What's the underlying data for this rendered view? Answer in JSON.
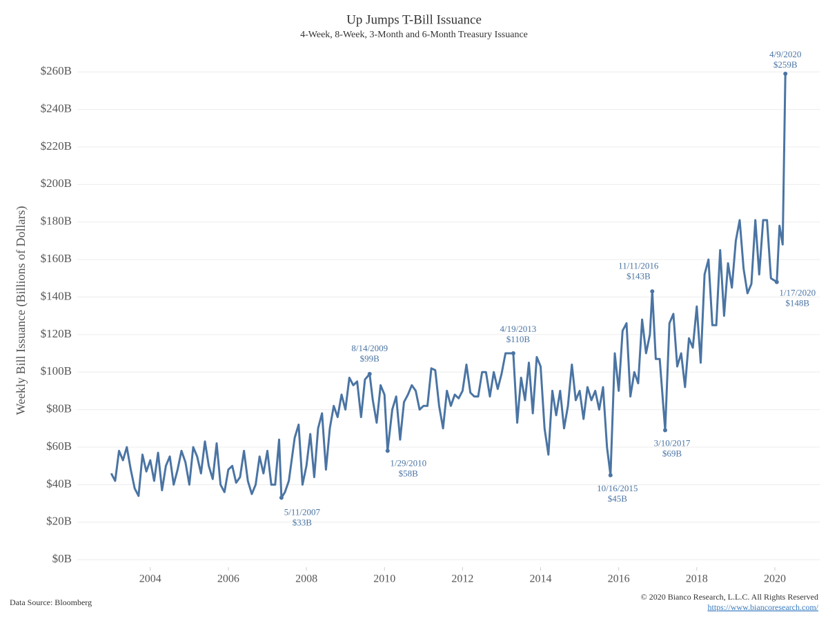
{
  "chart_data": {
    "type": "line",
    "title": "Up Jumps T-Bill Issuance",
    "subtitle": "4-Week, 8-Week, 3-Month and 6-Month Treasury Issuance",
    "y_label": "Weekly Bill Issuance (Billions of Dollars)",
    "source": "Data Source: Bloomberg",
    "copyright": "© 2020 Bianco Research, L.L.C. All Rights Reserved",
    "url": "https://www.biancoresearch.com/",
    "xlim": [
      2002.13,
      2021.15
    ],
    "xticks": [
      2004,
      2006,
      2008,
      2010,
      2012,
      2014,
      2016,
      2018,
      2020
    ],
    "ylim": [
      -4,
      270
    ],
    "yticks": [
      {
        "value": 0,
        "label": "$0B"
      },
      {
        "value": 20,
        "label": "$20B"
      },
      {
        "value": 40,
        "label": "$40B"
      },
      {
        "value": 60,
        "label": "$60B"
      },
      {
        "value": 80,
        "label": "$80B"
      },
      {
        "value": 100,
        "label": "$100B"
      },
      {
        "value": 120,
        "label": "$120B"
      },
      {
        "value": 140,
        "label": "$140B"
      },
      {
        "value": 160,
        "label": "$160B"
      },
      {
        "value": 180,
        "label": "$180B"
      },
      {
        "value": 200,
        "label": "$200B"
      },
      {
        "value": 220,
        "label": "$220B"
      },
      {
        "value": 240,
        "label": "$240B"
      },
      {
        "value": 260,
        "label": "$260B"
      }
    ],
    "grid": true,
    "color": "#4a74a3",
    "x": [
      2003.0,
      2003.1,
      2003.2,
      2003.3,
      2003.4,
      2003.5,
      2003.6,
      2003.7,
      2003.8,
      2003.9,
      2004.0,
      2004.1,
      2004.2,
      2004.3,
      2004.4,
      2004.5,
      2004.6,
      2004.7,
      2004.8,
      2004.9,
      2005.0,
      2005.1,
      2005.2,
      2005.3,
      2005.4,
      2005.5,
      2005.6,
      2005.7,
      2005.8,
      2005.9,
      2006.0,
      2006.1,
      2006.2,
      2006.3,
      2006.4,
      2006.5,
      2006.6,
      2006.7,
      2006.8,
      2006.9,
      2007.0,
      2007.1,
      2007.2,
      2007.3,
      2007.36,
      2007.45,
      2007.55,
      2007.7,
      2007.8,
      2007.9,
      2008.0,
      2008.1,
      2008.2,
      2008.3,
      2008.4,
      2008.5,
      2008.6,
      2008.7,
      2008.8,
      2008.9,
      2009.0,
      2009.1,
      2009.2,
      2009.3,
      2009.4,
      2009.5,
      2009.62,
      2009.7,
      2009.8,
      2009.9,
      2010.0,
      2010.08,
      2010.2,
      2010.3,
      2010.4,
      2010.5,
      2010.6,
      2010.7,
      2010.8,
      2010.9,
      2011.0,
      2011.1,
      2011.2,
      2011.3,
      2011.4,
      2011.5,
      2011.6,
      2011.7,
      2011.8,
      2011.9,
      2012.0,
      2012.1,
      2012.2,
      2012.3,
      2012.4,
      2012.5,
      2012.6,
      2012.7,
      2012.8,
      2012.9,
      2013.0,
      2013.1,
      2013.2,
      2013.3,
      2013.4,
      2013.5,
      2013.6,
      2013.7,
      2013.8,
      2013.9,
      2014.0,
      2014.1,
      2014.2,
      2014.3,
      2014.4,
      2014.5,
      2014.6,
      2014.7,
      2014.8,
      2014.9,
      2015.0,
      2015.1,
      2015.2,
      2015.3,
      2015.4,
      2015.5,
      2015.6,
      2015.7,
      2015.79,
      2015.9,
      2016.0,
      2016.1,
      2016.2,
      2016.3,
      2016.4,
      2016.5,
      2016.6,
      2016.7,
      2016.8,
      2016.86,
      2016.95,
      2017.05,
      2017.19,
      2017.3,
      2017.4,
      2017.5,
      2017.6,
      2017.7,
      2017.8,
      2017.9,
      2018.0,
      2018.1,
      2018.2,
      2018.3,
      2018.4,
      2018.5,
      2018.6,
      2018.7,
      2018.8,
      2018.9,
      2019.0,
      2019.1,
      2019.2,
      2019.3,
      2019.4,
      2019.5,
      2019.6,
      2019.7,
      2019.8,
      2019.9,
      2020.05,
      2020.12,
      2020.2,
      2020.27
    ],
    "values": [
      46,
      42,
      58,
      53,
      60,
      48,
      38,
      34,
      56,
      47,
      53,
      42,
      57,
      37,
      50,
      55,
      40,
      48,
      58,
      52,
      40,
      60,
      55,
      46,
      63,
      50,
      43,
      62,
      40,
      36,
      48,
      50,
      41,
      44,
      58,
      42,
      35,
      40,
      55,
      46,
      58,
      40,
      40,
      64,
      33,
      36,
      42,
      65,
      72,
      40,
      50,
      67,
      44,
      70,
      78,
      48,
      70,
      82,
      76,
      88,
      80,
      97,
      93,
      95,
      76,
      96,
      99,
      85,
      73,
      93,
      88,
      58,
      80,
      87,
      64,
      84,
      88,
      93,
      90,
      80,
      82,
      82,
      102,
      101,
      82,
      70,
      90,
      82,
      88,
      86,
      90,
      104,
      89,
      87,
      87,
      100,
      100,
      87,
      100,
      91,
      99,
      110,
      110,
      110,
      73,
      97,
      85,
      105,
      78,
      108,
      103,
      70,
      56,
      90,
      77,
      90,
      70,
      82,
      104,
      85,
      90,
      75,
      92,
      85,
      90,
      80,
      92,
      60,
      45,
      110,
      90,
      122,
      126,
      87,
      100,
      94,
      128,
      110,
      120,
      143,
      107,
      107,
      69,
      126,
      131,
      103,
      110,
      92,
      118,
      113,
      135,
      105,
      152,
      160,
      125,
      125,
      165,
      130,
      158,
      145,
      170,
      181,
      155,
      142,
      147,
      181,
      152,
      181,
      181,
      150,
      148,
      178,
      168,
      259
    ],
    "annotations": [
      {
        "label": "5/11/2007",
        "value_label": "$33B",
        "x": 2007.36,
        "y": 33
      },
      {
        "label": "8/14/2009",
        "value_label": "$99B",
        "x": 2009.62,
        "y": 99
      },
      {
        "label": "1/29/2010",
        "value_label": "$58B",
        "x": 2010.08,
        "y": 58
      },
      {
        "label": "4/19/2013",
        "value_label": "$110B",
        "x": 2013.3,
        "y": 110
      },
      {
        "label": "10/16/2015",
        "value_label": "$45B",
        "x": 2015.79,
        "y": 45
      },
      {
        "label": "11/11/2016",
        "value_label": "$143B",
        "x": 2016.86,
        "y": 143
      },
      {
        "label": "3/10/2017",
        "value_label": "$69B",
        "x": 2017.19,
        "y": 69
      },
      {
        "label": "1/17/2020",
        "value_label": "$148B",
        "x": 2020.05,
        "y": 148
      },
      {
        "label": "4/9/2020",
        "value_label": "$259B",
        "x": 2020.27,
        "y": 259
      }
    ]
  }
}
